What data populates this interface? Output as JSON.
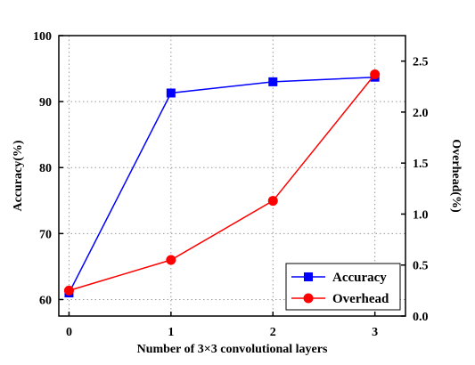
{
  "chart_data": {
    "type": "line",
    "xlabel": "Number of  3×3 convolutional layers",
    "ylabel_left": "Accuracy(%)",
    "ylabel_right": "Overhead(%)",
    "x": [
      0,
      1,
      2,
      3
    ],
    "xticks": [
      "0",
      "1",
      "2",
      "3"
    ],
    "xlim": [
      -0.1,
      3.3
    ],
    "ylim_left": [
      57.5,
      100
    ],
    "yticks_left": [
      "60",
      "70",
      "80",
      "90",
      "100"
    ],
    "ylim_right": [
      0.0,
      2.75
    ],
    "yticks_right": [
      "0.0",
      "0.5",
      "1.0",
      "1.5",
      "2.0",
      "2.5"
    ],
    "grid": true,
    "legend_position": "bottom-right",
    "series": [
      {
        "name": "Accuracy",
        "axis": "left",
        "values": [
          61.0,
          91.3,
          93.0,
          93.7
        ],
        "color": "#0000ff",
        "marker": "square"
      },
      {
        "name": "Overhead",
        "axis": "right",
        "values": [
          0.25,
          0.55,
          1.13,
          2.37
        ],
        "color": "#ff0000",
        "marker": "circle"
      }
    ]
  }
}
